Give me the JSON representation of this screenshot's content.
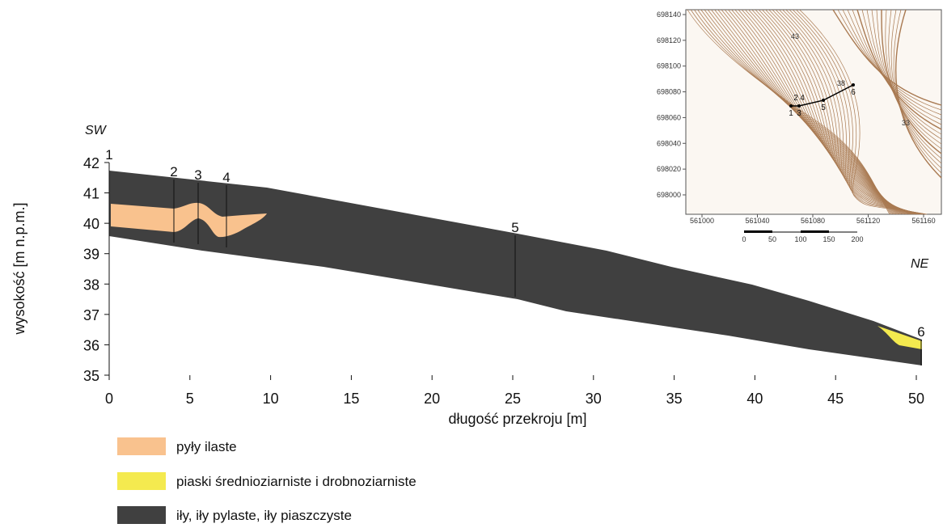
{
  "profile": {
    "direction_start": "SW",
    "direction_end": "NE",
    "x_axis": {
      "label": "długość przekroju [m]",
      "ticks": [
        0,
        5,
        10,
        15,
        20,
        25,
        30,
        35,
        40,
        45,
        50
      ]
    },
    "y_axis": {
      "label": "wysokość [m n.p.m.]",
      "ticks": [
        35,
        36,
        37,
        38,
        39,
        40,
        41,
        42
      ]
    },
    "boreholes": [
      "1",
      "2",
      "3",
      "4",
      "5",
      "6"
    ]
  },
  "legend": [
    "pyły ilaste",
    "piaski średnioziarniste i drobnoziarniste",
    "iły, iły pylaste, iły piaszczyste"
  ],
  "inset": {
    "y_ticks": [
      698000,
      698020,
      698040,
      698060,
      698080,
      698100,
      698120,
      698140
    ],
    "x_ticks": [
      561000,
      561040,
      561080,
      561120,
      561160
    ],
    "scale_labels": [
      "0",
      "50",
      "100",
      "150",
      "200"
    ],
    "point_labels": [
      "1",
      "2",
      "3",
      "4",
      "5",
      "6"
    ],
    "contour_labels": [
      "43",
      "38",
      "33"
    ]
  }
}
